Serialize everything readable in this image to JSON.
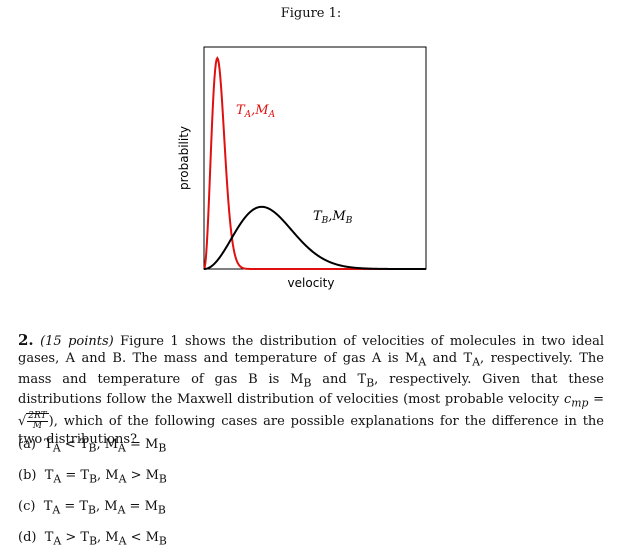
{
  "figure": {
    "caption": "Figure 1:"
  },
  "chart_data": {
    "type": "line",
    "xlabel": "velocity",
    "ylabel": "probability",
    "grid": false,
    "series": [
      {
        "name": "T_A,M_A",
        "label_parts": [
          "T",
          "A",
          ",M",
          "A"
        ],
        "color": "#e01010",
        "peak_x": 0.06,
        "peak_y": 0.95
      },
      {
        "name": "T_B,M_B",
        "label_parts": [
          "T",
          "B",
          ",M",
          "B"
        ],
        "color": "#000000",
        "peak_x": 0.26,
        "peak_y": 0.28
      }
    ]
  },
  "question": {
    "number": "2.",
    "points": "(15 points)",
    "text_1": "Figure 1 shows the distribution of velocities of molecules in two ideal gases, A and B. The mass and temperature of gas A is M",
    "sub_a": "A",
    "text_2": " and T",
    "sub_a2": "A",
    "text_3": ", respectively. The mass and temperature of gas B is M",
    "sub_b": "B",
    "text_4": " and T",
    "sub_b2": "B",
    "text_5": ", respectively. Given that these distributions follow the Maxwell distribution of velocities (most probable velocity ",
    "cmp": "c",
    "cmp_sub": "mp",
    "eq": " = ",
    "frac_num": "2RT",
    "frac_den": "M",
    "text_6": "), which of the following cases are possible explanations for the difference in the two distributions?"
  },
  "options": [
    {
      "label": "(a)",
      "text": "T",
      "s1": "A",
      "rel1": " < T",
      "s2": "B",
      "mid": ", M",
      "s3": "A",
      "rel2": " = M",
      "s4": "B"
    },
    {
      "label": "(b)",
      "text": "T",
      "s1": "A",
      "rel1": " = T",
      "s2": "B",
      "mid": ", M",
      "s3": "A",
      "rel2": " > M",
      "s4": "B"
    },
    {
      "label": "(c)",
      "text": "T",
      "s1": "A",
      "rel1": " = T",
      "s2": "B",
      "mid": ", M",
      "s3": "A",
      "rel2": " = M",
      "s4": "B"
    },
    {
      "label": "(d)",
      "text": "T",
      "s1": "A",
      "rel1": " > T",
      "s2": "B",
      "mid": ", M",
      "s3": "A",
      "rel2": " < M",
      "s4": "B"
    }
  ]
}
